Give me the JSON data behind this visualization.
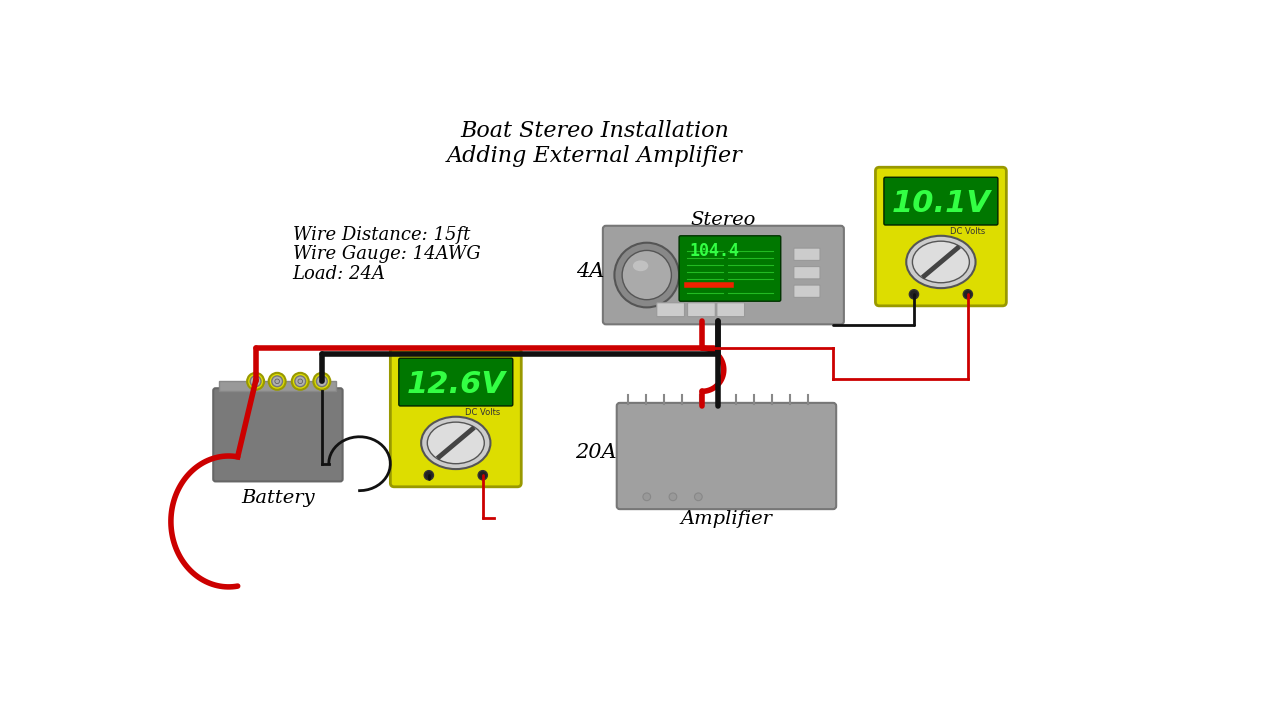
{
  "title_line1": "Boat Stereo Installation",
  "title_line2": "Adding External Amplifier",
  "info_line1": "Wire Distance: 15ft",
  "info_line2": "Wire Gauge: 14AWG",
  "info_line3": "Load: 24A",
  "bg_color": "#ffffff",
  "label_battery": "Battery",
  "label_stereo": "Stereo",
  "label_amplifier": "Amplifier",
  "label_4A": "4A",
  "label_20A": "20A",
  "volt_meter1_value": "12.6V",
  "volt_meter2_value": "10.1V",
  "meter_sub": "DC Volts",
  "stereo_freq": "104.4",
  "yellow_color": "#dddd00",
  "green_bg": "#007700",
  "green_bright": "#33ff44",
  "wire_red": "#cc0000",
  "wire_black": "#111111",
  "stereo_bg": "#a0a0a0",
  "battery_bg": "#7a7a7a",
  "amplifier_bg": "#a0a0a0",
  "terminal_yellow": "#dddd00",
  "terminal_gray": "#b0b0b0"
}
